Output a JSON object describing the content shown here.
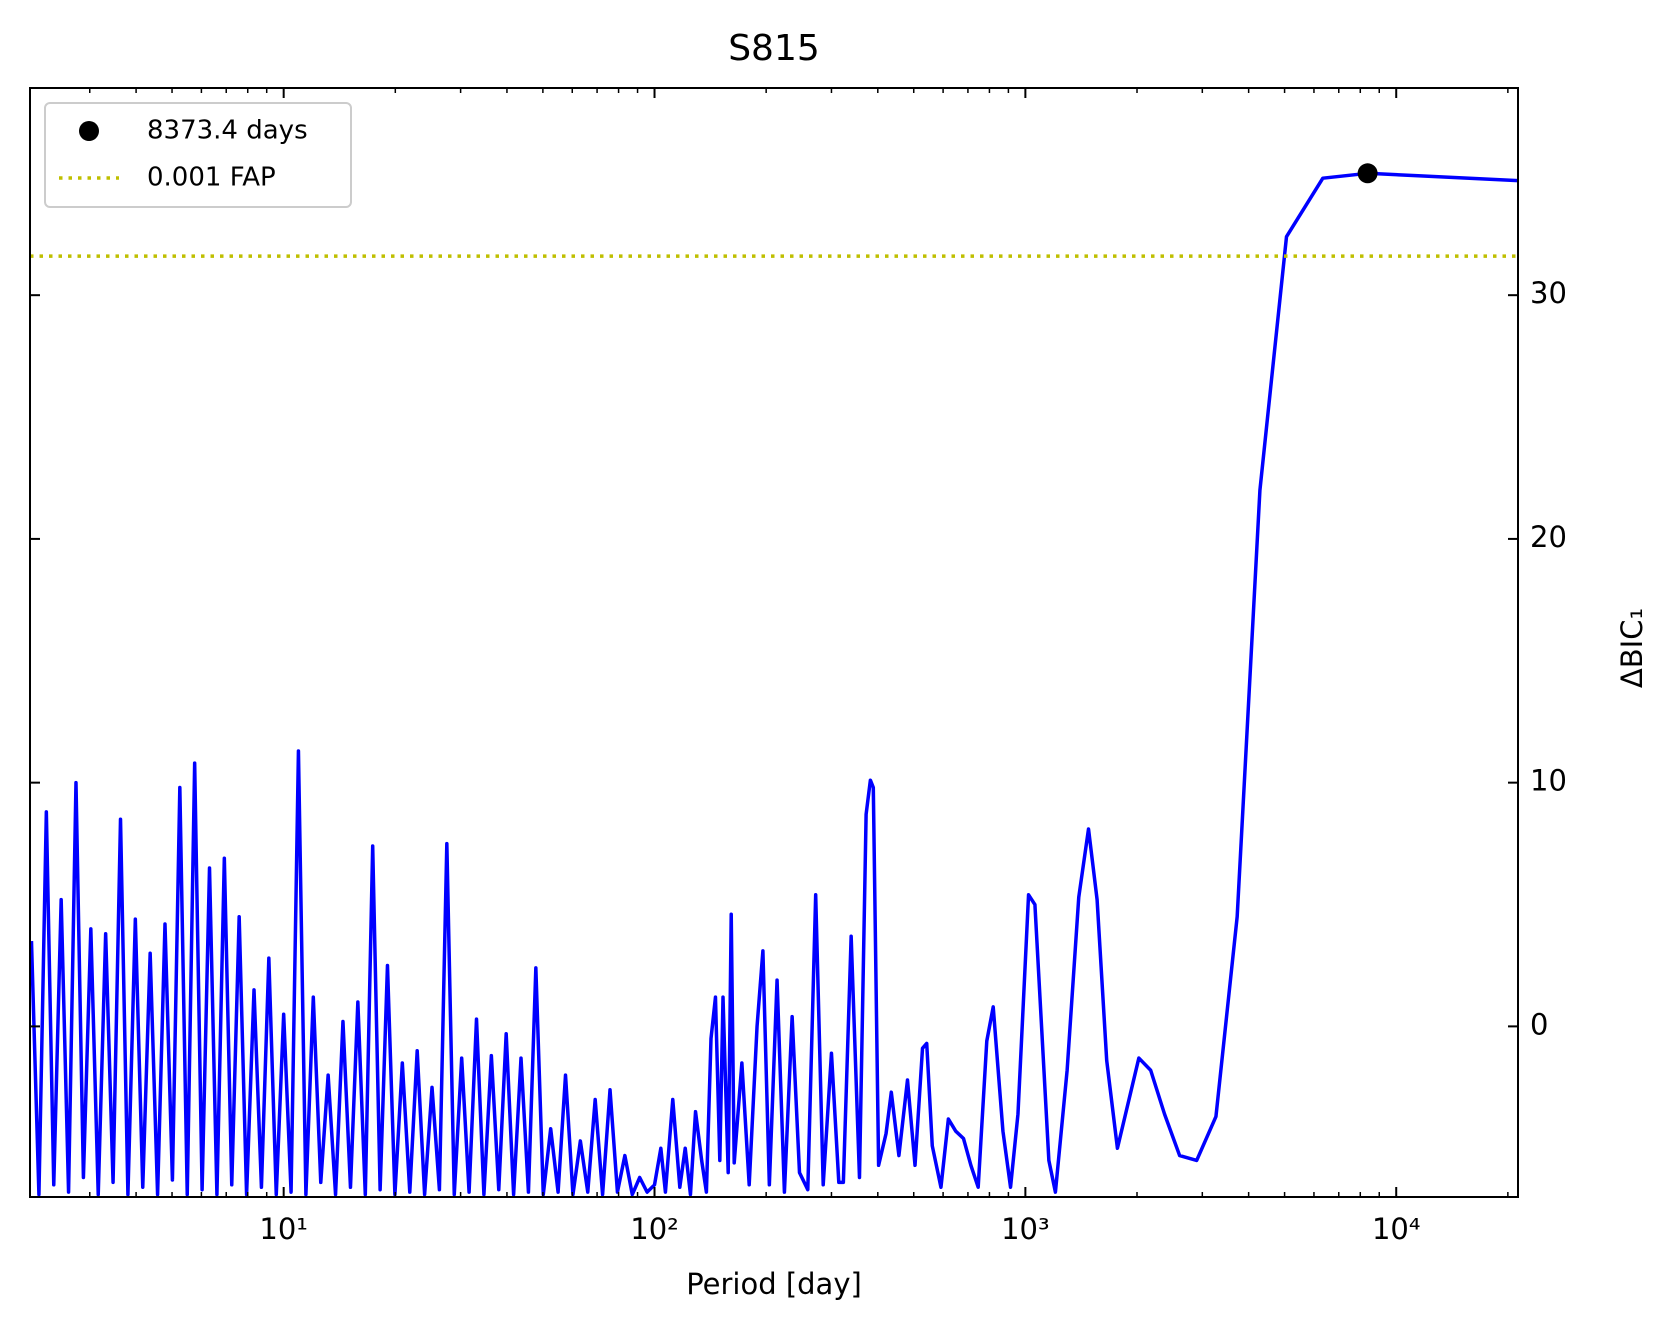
{
  "chart_data": {
    "type": "line",
    "title": "S815",
    "x_label": "Period [day]",
    "y_label": "ΔBIC₁",
    "xscale": "log",
    "xlim": [
      2.07,
      21300
    ],
    "ylim": [
      -7,
      38.5
    ],
    "xticks": [
      {
        "value": 10,
        "label": "10¹"
      },
      {
        "value": 100,
        "label": "10²"
      },
      {
        "value": 1000,
        "label": "10³"
      },
      {
        "value": 10000,
        "label": "10⁴"
      }
    ],
    "xminorticks": [
      3,
      4,
      5,
      6,
      7,
      8,
      9,
      20,
      30,
      40,
      50,
      60,
      70,
      80,
      90,
      200,
      300,
      400,
      500,
      600,
      700,
      800,
      900,
      2000,
      3000,
      4000,
      5000,
      6000,
      7000,
      8000,
      9000,
      20000
    ],
    "yticks": [
      0,
      10,
      20,
      30
    ],
    "yaxis_side": "right",
    "legend": "upper left",
    "series": [
      {
        "type": "line",
        "color": "#0000ff",
        "x": [
          2.089,
          2.188,
          2.291,
          2.399,
          2.512,
          2.63,
          2.754,
          2.884,
          3.02,
          3.162,
          3.311,
          3.467,
          3.631,
          3.802,
          3.981,
          4.169,
          4.365,
          4.571,
          4.786,
          5.012,
          5.248,
          5.495,
          5.754,
          6.026,
          6.31,
          6.607,
          6.918,
          7.244,
          7.586,
          7.943,
          8.318,
          8.71,
          9.12,
          9.55,
          10,
          10.47,
          10.96,
          11.48,
          12.02,
          12.59,
          13.18,
          13.8,
          14.45,
          15.14,
          15.85,
          16.6,
          17.38,
          18.2,
          19.05,
          19.95,
          20.89,
          21.88,
          22.91,
          23.99,
          25.12,
          26.3,
          27.54,
          28.84,
          30.2,
          31.62,
          33.11,
          34.67,
          36.31,
          38.02,
          39.81,
          41.69,
          43.65,
          45.71,
          47.86,
          50.12,
          52.48,
          54.95,
          57.54,
          60.26,
          63.1,
          66.07,
          69.18,
          72.44,
          75.86,
          79.43,
          83.18,
          87.1,
          91.2,
          95.5,
          100,
          104,
          107,
          112,
          117,
          121,
          125,
          129,
          134,
          138,
          142,
          146,
          150,
          153,
          158,
          161,
          164,
          172,
          180,
          189,
          196,
          204,
          214,
          224,
          235,
          246,
          259,
          272,
          285,
          300,
          314,
          323,
          339,
          357,
          372,
          382,
          389,
          402,
          421,
          435,
          456,
          481,
          504,
          528,
          542,
          561,
          592,
          620,
          649,
          681,
          713,
          746,
          787,
          819,
          870,
          912,
          955,
          1020,
          1061,
          1157,
          1205,
          1296,
          1393,
          1480,
          1561,
          1657,
          1771,
          2023,
          2177,
          2373,
          2606,
          2897,
          3265,
          3725,
          4290,
          5060,
          6340,
          8373.4,
          11460,
          21300
        ],
        "values": [
          3.5,
          -6.9,
          8.8,
          -6.5,
          5.2,
          -6.8,
          10.0,
          -6.2,
          4.0,
          -6.9,
          3.8,
          -6.4,
          8.5,
          -6.9,
          4.4,
          -6.6,
          3.0,
          -6.9,
          4.2,
          -6.3,
          9.8,
          -6.9,
          10.8,
          -6.7,
          6.5,
          -6.9,
          6.9,
          -6.5,
          4.5,
          -6.9,
          1.5,
          -6.6,
          2.8,
          -6.9,
          0.5,
          -6.8,
          11.3,
          -6.9,
          1.2,
          -6.4,
          -2.0,
          -6.9,
          0.2,
          -6.6,
          1.0,
          -6.9,
          7.4,
          -6.7,
          2.5,
          -6.9,
          -1.5,
          -6.8,
          -1.0,
          -6.9,
          -2.5,
          -6.7,
          7.5,
          -6.9,
          -1.3,
          -6.8,
          0.3,
          -6.9,
          -1.2,
          -6.7,
          -0.3,
          -6.9,
          -1.3,
          -6.8,
          2.4,
          -6.9,
          -4.2,
          -6.8,
          -2.0,
          -6.9,
          -4.7,
          -6.8,
          -3.0,
          -6.9,
          -2.6,
          -6.8,
          -5.3,
          -6.9,
          -6.2,
          -6.8,
          -6.5,
          -5.0,
          -6.8,
          -3.0,
          -6.6,
          -5.0,
          -6.9,
          -3.5,
          -5.5,
          -6.8,
          -0.5,
          1.2,
          -5.5,
          1.2,
          -6.0,
          4.6,
          -5.6,
          -1.5,
          -6.5,
          0,
          3.1,
          -6.5,
          1.9,
          -6.8,
          0.4,
          -6.0,
          -6.7,
          5.4,
          -6.5,
          -1.1,
          -6.4,
          -6.4,
          3.7,
          -6.2,
          8.7,
          10.1,
          9.8,
          -5.7,
          -4.4,
          -2.7,
          -5.3,
          -2.2,
          -5.7,
          -0.9,
          -0.7,
          -4.9,
          -6.6,
          -3.8,
          -4.3,
          -4.6,
          -5.7,
          -6.6,
          -0.6,
          0.8,
          -4.3,
          -6.6,
          -3.6,
          5.4,
          5.0,
          -5.5,
          -6.8,
          -1.8,
          5.3,
          8.1,
          5.2,
          -1.4,
          -5.0,
          -1.3,
          -1.8,
          -3.6,
          -5.3,
          -5.5,
          -3.7,
          4.5,
          22.0,
          32.4,
          34.8,
          35.0,
          34.9,
          34.7
        ]
      },
      {
        "type": "scatter",
        "name": "8373.4 days",
        "color": "#000000",
        "x": [
          8373.4
        ],
        "values": [
          35.0
        ]
      },
      {
        "type": "hline",
        "name": "0.001 FAP",
        "color": "#bfbf00",
        "values": [
          31.6
        ]
      }
    ]
  }
}
